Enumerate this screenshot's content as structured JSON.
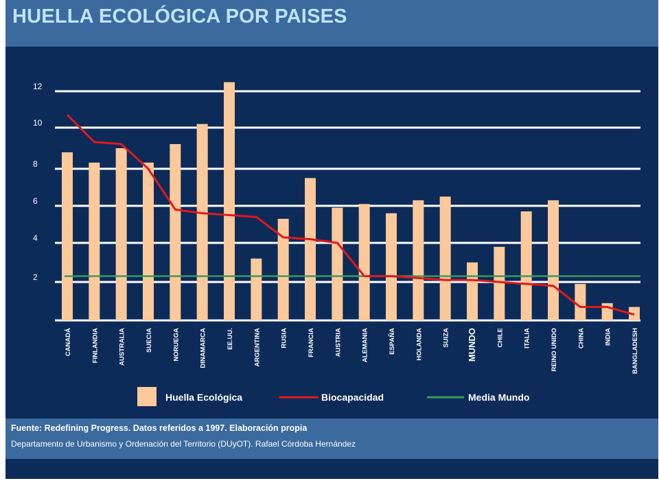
{
  "title": "HUELLA ECOLÓGICA POR PAISES",
  "footer": {
    "source": "Fuente: Redefining Progress. Datos referidos a 1997. Elaboración propia",
    "credit": "Departamento de Urbanismo y Ordenación del Territorio (DUyOT). Rafael Córdoba Hernández"
  },
  "colors": {
    "background": "#0c2b59",
    "bar": "#fcc99b",
    "biocapacity": "#e0191b",
    "world_mean": "#3a9a5c",
    "grid": "#ffffff"
  },
  "chart_data": {
    "type": "bar",
    "categories": [
      "CANADÁ",
      "FINLANDIA",
      "AUSTRALIA",
      "SUECIA",
      "NORUEGA",
      "DINAMARCA",
      "EE.UU.",
      "ARGENTINA",
      "RUSIA",
      "FRANCIA",
      "AUSTRIA",
      "ALEMANIA",
      "ESPAÑA",
      "HOLANDA",
      "SUIZA",
      "MUNDO",
      "CHILE",
      "ITALIA",
      "REINO UNIDO",
      "CHINA",
      "INDIA",
      "BANGLADESH"
    ],
    "series": [
      {
        "name": "Huella Ecológica",
        "kind": "bar",
        "values": [
          8.8,
          8.3,
          9.0,
          8.3,
          9.2,
          10.2,
          12.5,
          3.2,
          5.3,
          7.5,
          5.9,
          6.1,
          5.6,
          6.3,
          6.5,
          3.0,
          3.8,
          5.7,
          6.3,
          1.9,
          0.9,
          0.7
        ]
      },
      {
        "name": "Biocapacidad",
        "kind": "line",
        "values": [
          10.7,
          9.3,
          9.2,
          8.0,
          5.8,
          5.6,
          5.5,
          5.4,
          4.3,
          4.2,
          4.0,
          2.3,
          2.3,
          2.2,
          2.1,
          2.1,
          2.0,
          1.9,
          1.8,
          0.7,
          0.7,
          0.3
        ]
      },
      {
        "name": "Media Mundo",
        "kind": "hline",
        "value": 2.3
      }
    ],
    "y_ticks": [
      2,
      4,
      6,
      8,
      10,
      12
    ],
    "ylim": [
      0,
      12.5
    ],
    "grid": true,
    "legend_position": "bottom"
  }
}
